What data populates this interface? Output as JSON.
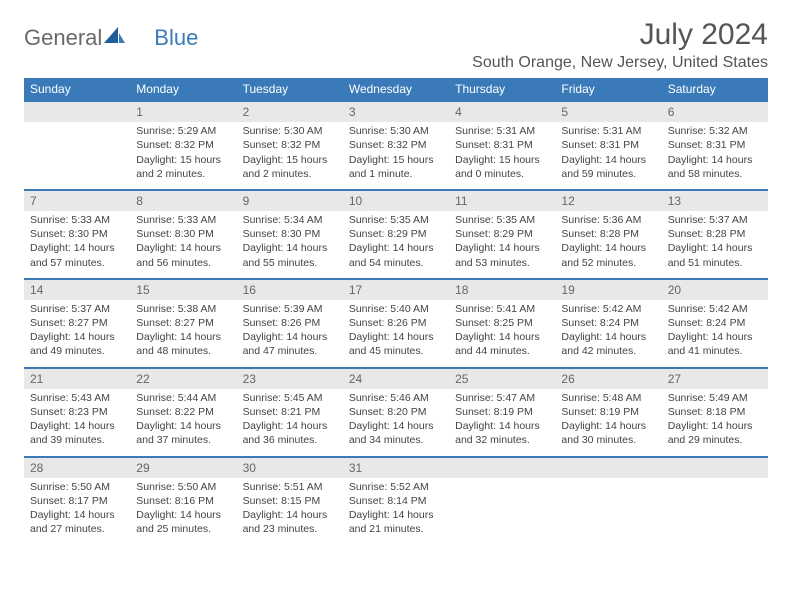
{
  "logo": {
    "text1": "General",
    "text2": "Blue"
  },
  "title": "July 2024",
  "location": "South Orange, New Jersey, United States",
  "colors": {
    "header_bg": "#3a7ab8",
    "header_text": "#ffffff",
    "daynum_bg": "#e8e8e8",
    "divider": "#3a7ab8",
    "body_text": "#444444"
  },
  "day_headers": [
    "Sunday",
    "Monday",
    "Tuesday",
    "Wednesday",
    "Thursday",
    "Friday",
    "Saturday"
  ],
  "weeks": [
    {
      "nums": [
        "",
        "1",
        "2",
        "3",
        "4",
        "5",
        "6"
      ],
      "cells": [
        {
          "sunrise": "",
          "sunset": "",
          "daylight1": "",
          "daylight2": ""
        },
        {
          "sunrise": "Sunrise: 5:29 AM",
          "sunset": "Sunset: 8:32 PM",
          "daylight1": "Daylight: 15 hours",
          "daylight2": "and 2 minutes."
        },
        {
          "sunrise": "Sunrise: 5:30 AM",
          "sunset": "Sunset: 8:32 PM",
          "daylight1": "Daylight: 15 hours",
          "daylight2": "and 2 minutes."
        },
        {
          "sunrise": "Sunrise: 5:30 AM",
          "sunset": "Sunset: 8:32 PM",
          "daylight1": "Daylight: 15 hours",
          "daylight2": "and 1 minute."
        },
        {
          "sunrise": "Sunrise: 5:31 AM",
          "sunset": "Sunset: 8:31 PM",
          "daylight1": "Daylight: 15 hours",
          "daylight2": "and 0 minutes."
        },
        {
          "sunrise": "Sunrise: 5:31 AM",
          "sunset": "Sunset: 8:31 PM",
          "daylight1": "Daylight: 14 hours",
          "daylight2": "and 59 minutes."
        },
        {
          "sunrise": "Sunrise: 5:32 AM",
          "sunset": "Sunset: 8:31 PM",
          "daylight1": "Daylight: 14 hours",
          "daylight2": "and 58 minutes."
        }
      ]
    },
    {
      "nums": [
        "7",
        "8",
        "9",
        "10",
        "11",
        "12",
        "13"
      ],
      "cells": [
        {
          "sunrise": "Sunrise: 5:33 AM",
          "sunset": "Sunset: 8:30 PM",
          "daylight1": "Daylight: 14 hours",
          "daylight2": "and 57 minutes."
        },
        {
          "sunrise": "Sunrise: 5:33 AM",
          "sunset": "Sunset: 8:30 PM",
          "daylight1": "Daylight: 14 hours",
          "daylight2": "and 56 minutes."
        },
        {
          "sunrise": "Sunrise: 5:34 AM",
          "sunset": "Sunset: 8:30 PM",
          "daylight1": "Daylight: 14 hours",
          "daylight2": "and 55 minutes."
        },
        {
          "sunrise": "Sunrise: 5:35 AM",
          "sunset": "Sunset: 8:29 PM",
          "daylight1": "Daylight: 14 hours",
          "daylight2": "and 54 minutes."
        },
        {
          "sunrise": "Sunrise: 5:35 AM",
          "sunset": "Sunset: 8:29 PM",
          "daylight1": "Daylight: 14 hours",
          "daylight2": "and 53 minutes."
        },
        {
          "sunrise": "Sunrise: 5:36 AM",
          "sunset": "Sunset: 8:28 PM",
          "daylight1": "Daylight: 14 hours",
          "daylight2": "and 52 minutes."
        },
        {
          "sunrise": "Sunrise: 5:37 AM",
          "sunset": "Sunset: 8:28 PM",
          "daylight1": "Daylight: 14 hours",
          "daylight2": "and 51 minutes."
        }
      ]
    },
    {
      "nums": [
        "14",
        "15",
        "16",
        "17",
        "18",
        "19",
        "20"
      ],
      "cells": [
        {
          "sunrise": "Sunrise: 5:37 AM",
          "sunset": "Sunset: 8:27 PM",
          "daylight1": "Daylight: 14 hours",
          "daylight2": "and 49 minutes."
        },
        {
          "sunrise": "Sunrise: 5:38 AM",
          "sunset": "Sunset: 8:27 PM",
          "daylight1": "Daylight: 14 hours",
          "daylight2": "and 48 minutes."
        },
        {
          "sunrise": "Sunrise: 5:39 AM",
          "sunset": "Sunset: 8:26 PM",
          "daylight1": "Daylight: 14 hours",
          "daylight2": "and 47 minutes."
        },
        {
          "sunrise": "Sunrise: 5:40 AM",
          "sunset": "Sunset: 8:26 PM",
          "daylight1": "Daylight: 14 hours",
          "daylight2": "and 45 minutes."
        },
        {
          "sunrise": "Sunrise: 5:41 AM",
          "sunset": "Sunset: 8:25 PM",
          "daylight1": "Daylight: 14 hours",
          "daylight2": "and 44 minutes."
        },
        {
          "sunrise": "Sunrise: 5:42 AM",
          "sunset": "Sunset: 8:24 PM",
          "daylight1": "Daylight: 14 hours",
          "daylight2": "and 42 minutes."
        },
        {
          "sunrise": "Sunrise: 5:42 AM",
          "sunset": "Sunset: 8:24 PM",
          "daylight1": "Daylight: 14 hours",
          "daylight2": "and 41 minutes."
        }
      ]
    },
    {
      "nums": [
        "21",
        "22",
        "23",
        "24",
        "25",
        "26",
        "27"
      ],
      "cells": [
        {
          "sunrise": "Sunrise: 5:43 AM",
          "sunset": "Sunset: 8:23 PM",
          "daylight1": "Daylight: 14 hours",
          "daylight2": "and 39 minutes."
        },
        {
          "sunrise": "Sunrise: 5:44 AM",
          "sunset": "Sunset: 8:22 PM",
          "daylight1": "Daylight: 14 hours",
          "daylight2": "and 37 minutes."
        },
        {
          "sunrise": "Sunrise: 5:45 AM",
          "sunset": "Sunset: 8:21 PM",
          "daylight1": "Daylight: 14 hours",
          "daylight2": "and 36 minutes."
        },
        {
          "sunrise": "Sunrise: 5:46 AM",
          "sunset": "Sunset: 8:20 PM",
          "daylight1": "Daylight: 14 hours",
          "daylight2": "and 34 minutes."
        },
        {
          "sunrise": "Sunrise: 5:47 AM",
          "sunset": "Sunset: 8:19 PM",
          "daylight1": "Daylight: 14 hours",
          "daylight2": "and 32 minutes."
        },
        {
          "sunrise": "Sunrise: 5:48 AM",
          "sunset": "Sunset: 8:19 PM",
          "daylight1": "Daylight: 14 hours",
          "daylight2": "and 30 minutes."
        },
        {
          "sunrise": "Sunrise: 5:49 AM",
          "sunset": "Sunset: 8:18 PM",
          "daylight1": "Daylight: 14 hours",
          "daylight2": "and 29 minutes."
        }
      ]
    },
    {
      "nums": [
        "28",
        "29",
        "30",
        "31",
        "",
        "",
        ""
      ],
      "cells": [
        {
          "sunrise": "Sunrise: 5:50 AM",
          "sunset": "Sunset: 8:17 PM",
          "daylight1": "Daylight: 14 hours",
          "daylight2": "and 27 minutes."
        },
        {
          "sunrise": "Sunrise: 5:50 AM",
          "sunset": "Sunset: 8:16 PM",
          "daylight1": "Daylight: 14 hours",
          "daylight2": "and 25 minutes."
        },
        {
          "sunrise": "Sunrise: 5:51 AM",
          "sunset": "Sunset: 8:15 PM",
          "daylight1": "Daylight: 14 hours",
          "daylight2": "and 23 minutes."
        },
        {
          "sunrise": "Sunrise: 5:52 AM",
          "sunset": "Sunset: 8:14 PM",
          "daylight1": "Daylight: 14 hours",
          "daylight2": "and 21 minutes."
        },
        {
          "sunrise": "",
          "sunset": "",
          "daylight1": "",
          "daylight2": ""
        },
        {
          "sunrise": "",
          "sunset": "",
          "daylight1": "",
          "daylight2": ""
        },
        {
          "sunrise": "",
          "sunset": "",
          "daylight1": "",
          "daylight2": ""
        }
      ]
    }
  ]
}
